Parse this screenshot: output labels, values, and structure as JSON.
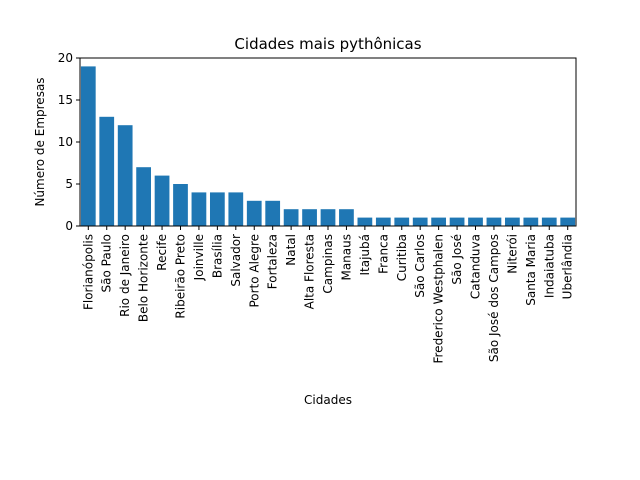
{
  "chart_data": {
    "type": "bar",
    "title": "Cidades mais pythônicas",
    "xlabel": "Cidades",
    "ylabel": "Número de Empresas",
    "ylim": [
      0,
      20
    ],
    "yticks": [
      0,
      5,
      10,
      15,
      20
    ],
    "grid": false,
    "bar_color": "#1f77b4",
    "categories": [
      "Florianópolis",
      "São Paulo",
      "Rio de Janeiro",
      "Belo Horizonte",
      "Recife",
      "Ribeirão Preto",
      "Joinville",
      "Brasília",
      "Salvador",
      "Porto Alegre",
      "Fortaleza",
      "Natal",
      "Alta Floresta",
      "Campinas",
      "Manaus",
      "Itajubá",
      "Franca",
      "Curitiba",
      "São Carlos",
      "Frederico Westphalen",
      "São José",
      "Catanduva",
      "São José dos Campos",
      "Niterói",
      "Santa Maria",
      "Indaiatuba",
      "Uberlândia"
    ],
    "values": [
      19,
      13,
      12,
      7,
      6,
      5,
      4,
      4,
      4,
      3,
      3,
      2,
      2,
      2,
      2,
      1,
      1,
      1,
      1,
      1,
      1,
      1,
      1,
      1,
      1,
      1,
      1
    ]
  }
}
